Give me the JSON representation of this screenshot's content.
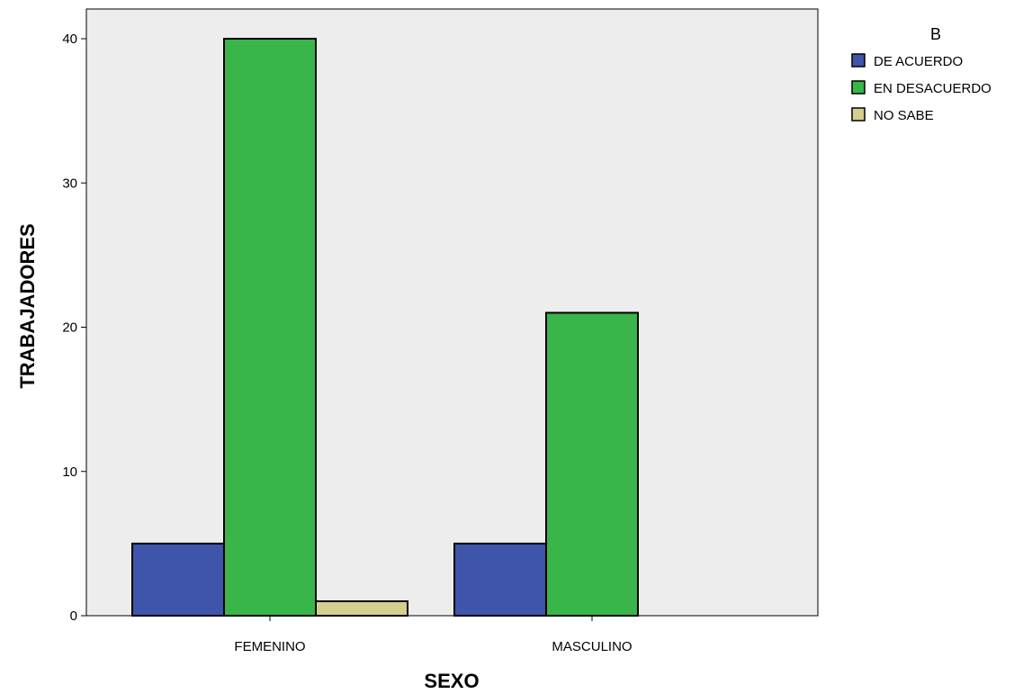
{
  "chart_data": {
    "type": "bar",
    "title": "",
    "xlabel": "SEXO",
    "ylabel": "TRABAJADORES",
    "categories": [
      "FEMENINO",
      "MASCULINO"
    ],
    "series": [
      {
        "name": "DE ACUERDO",
        "values": [
          5,
          5
        ],
        "color": "#3f54ab"
      },
      {
        "name": "EN DESACUERDO",
        "values": [
          40,
          21
        ],
        "color": "#39b54a"
      },
      {
        "name": "NO SABE",
        "values": [
          1,
          0
        ],
        "color": "#d4cf91"
      }
    ],
    "ylim": [
      0,
      40
    ],
    "yticks": [
      0,
      10,
      20,
      30,
      40
    ],
    "legend": {
      "title": "B",
      "placement": "right"
    },
    "grid": false,
    "plot_background": "#ededed"
  }
}
